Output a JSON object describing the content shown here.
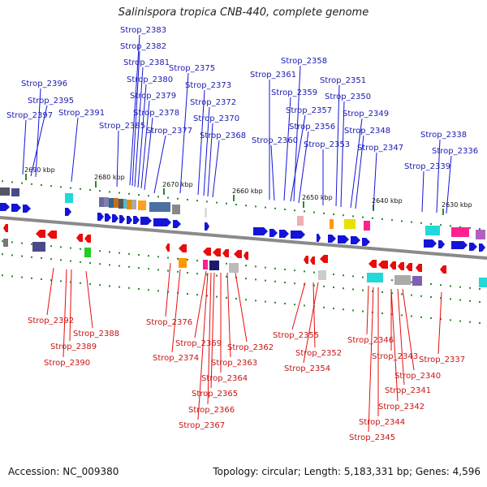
{
  "title": "Salinispora tropica CNB-440, complete genome",
  "footer": {
    "accession": "Accession: NC_009380",
    "topology": "Topology: circular; Length: 5,183,331 bp; Genes: 4,596"
  },
  "colors": {
    "forward": "#1414d8",
    "reverse": "#e80c0c",
    "fwd_label": "#1a1ab0",
    "rev_label": "#c81414",
    "tick": "#2a8a2a",
    "backbone": "#8a8a8a"
  },
  "ticks": [
    {
      "label": "2690 kbp"
    },
    {
      "label": "2680 kbp"
    },
    {
      "label": "2670 kbp"
    },
    {
      "label": "2660 kbp"
    },
    {
      "label": "2650 kbp"
    },
    {
      "label": "2640 kbp"
    },
    {
      "label": "2630 kbp"
    }
  ],
  "forward_labels": [
    "Strop_2383",
    "Strop_2382",
    "Strop_2381",
    "Strop_2380",
    "Strop_2379",
    "Strop_2378",
    "Strop_2385",
    "Strop_2377",
    "Strop_2375",
    "Strop_2373",
    "Strop_2372",
    "Strop_2370",
    "Strop_2368",
    "Strop_2396",
    "Strop_2395",
    "Strop_2397",
    "Strop_2391",
    "Strop_2358",
    "Strop_2361",
    "Strop_2359",
    "Strop_2357",
    "Strop_2356",
    "Strop_2360",
    "Strop_2351",
    "Strop_2350",
    "Strop_2349",
    "Strop_2348",
    "Strop_2353",
    "Strop_2347",
    "Strop_2338",
    "Strop_2336",
    "Strop_2339"
  ],
  "reverse_labels": [
    "Strop_2392",
    "Strop_2388",
    "Strop_2389",
    "Strop_2390",
    "Strop_2376",
    "Strop_2369",
    "Strop_2374",
    "Strop_2362",
    "Strop_2363",
    "Strop_2364",
    "Strop_2365",
    "Strop_2366",
    "Strop_2367",
    "Strop_2355",
    "Strop_2352",
    "Strop_2354",
    "Strop_2346",
    "Strop_2343",
    "Strop_2337",
    "Strop_2340",
    "Strop_2341",
    "Strop_2342",
    "Strop_2344",
    "Strop_2345"
  ]
}
